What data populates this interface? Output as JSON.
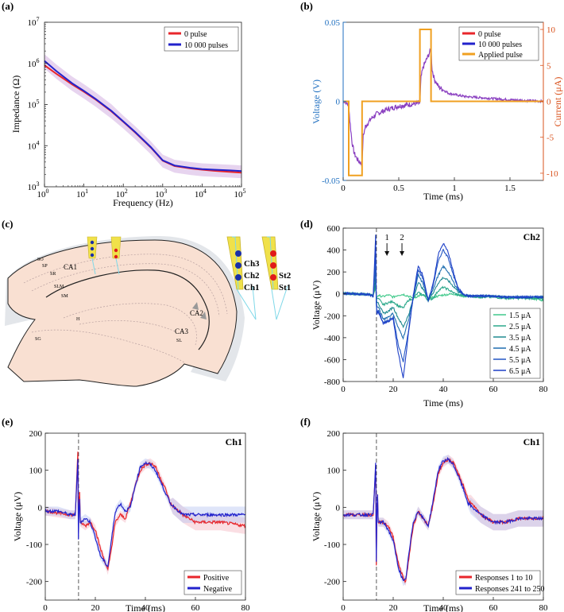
{
  "chart_data": [
    {
      "id": "a",
      "panel_label": "(a)",
      "type": "line",
      "xscale": "log",
      "yscale": "log",
      "xlabel": "Frequency (Hz)",
      "ylabel": "Impedance (Ω)",
      "xlim": [
        1,
        100000
      ],
      "ylim": [
        1000,
        10000000
      ],
      "xticks": [
        1,
        10,
        100,
        1000,
        10000,
        100000
      ],
      "xtick_labels": [
        [
          "10",
          "0"
        ],
        [
          "10",
          "1"
        ],
        [
          "10",
          "2"
        ],
        [
          "10",
          "3"
        ],
        [
          "10",
          "4"
        ],
        [
          "10",
          "5"
        ]
      ],
      "yticks": [
        1000,
        10000,
        100000,
        1000000,
        10000000
      ],
      "ytick_labels": [
        [
          "10",
          "3"
        ],
        [
          "10",
          "4"
        ],
        [
          "10",
          "5"
        ],
        [
          "10",
          "6"
        ],
        [
          "10",
          "7"
        ]
      ],
      "legend_position": "top-right",
      "series": [
        {
          "name": "0 pulse",
          "color": "#e8262b",
          "x": [
            1,
            2,
            5,
            10,
            20,
            50,
            100,
            200,
            500,
            1000,
            2000,
            5000,
            10000,
            20000,
            50000,
            100000
          ],
          "y": [
            900000,
            560000,
            310000,
            205000,
            132000,
            68000,
            38000,
            21000,
            9000,
            4300,
            3200,
            2800,
            2600,
            2450,
            2300,
            2200
          ]
        },
        {
          "name": "10 000 pulses",
          "color": "#2222cc",
          "x": [
            1,
            2,
            5,
            10,
            20,
            50,
            100,
            200,
            500,
            1000,
            2000,
            5000,
            10000,
            20000,
            50000,
            100000
          ],
          "y": [
            1150000,
            650000,
            330000,
            215000,
            136000,
            70000,
            39000,
            21500,
            9200,
            4400,
            3300,
            2900,
            2700,
            2600,
            2500,
            2400
          ]
        }
      ],
      "band": {
        "color": "#c9a0dc",
        "lower_factor": 0.65,
        "upper_factor": 1.45
      }
    },
    {
      "id": "b",
      "panel_label": "(b)",
      "type": "line",
      "xlabel": "Time (ms)",
      "ylabel_left": "Voltage (V)",
      "ylabel_right": "Current (μA)",
      "xlim": [
        0,
        1.8
      ],
      "ylim_left": [
        -0.05,
        0.05
      ],
      "ylim_right": [
        -11,
        11
      ],
      "xticks": [
        0,
        0.5,
        1,
        1.5
      ],
      "xtick_labels": [
        "0",
        "0.5",
        "1",
        "1.5"
      ],
      "yticks_left": [
        -0.05,
        0,
        0.05
      ],
      "ytick_labels_left": [
        "-0.05",
        "0",
        "0.05"
      ],
      "yticks_right": [
        -10,
        -5,
        0,
        5,
        10
      ],
      "ytick_labels_right": [
        "-10",
        "-5",
        "0",
        "5",
        "10"
      ],
      "left_axis_color": "#1f6fc0",
      "right_axis_color": "#d9531e",
      "legend_position": "top-right",
      "series": [
        {
          "name": "0 pulse",
          "color": "#e8262b",
          "axis": "left"
        },
        {
          "name": "10 000 pulses",
          "color": "#2222cc",
          "axis": "left"
        },
        {
          "name": "Applied pulse",
          "color": "#f0a020",
          "axis": "right",
          "x": [
            0,
            0.05,
            0.05,
            0.17,
            0.17,
            0.69,
            0.69,
            0.79,
            0.79,
            1.8
          ],
          "y": [
            0,
            0,
            -10.3,
            -10.3,
            0,
            0,
            10,
            10,
            0,
            0
          ]
        }
      ],
      "voltage_trace": {
        "color": "#8a3fc0",
        "x": [
          0,
          0.05,
          0.06,
          0.08,
          0.1,
          0.13,
          0.17,
          0.18,
          0.2,
          0.25,
          0.3,
          0.4,
          0.5,
          0.6,
          0.69,
          0.7,
          0.72,
          0.76,
          0.79,
          0.8,
          0.82,
          0.86,
          0.95,
          1.1,
          1.3,
          1.5,
          1.8
        ],
        "y": [
          0,
          -0.002,
          -0.012,
          -0.026,
          -0.033,
          -0.037,
          -0.04,
          -0.022,
          -0.016,
          -0.011,
          -0.008,
          -0.005,
          -0.003,
          -0.002,
          -0.001,
          0.015,
          0.022,
          0.028,
          0.033,
          0.02,
          0.014,
          0.009,
          0.005,
          0.003,
          0.002,
          0.001,
          0
        ]
      }
    },
    {
      "id": "d",
      "panel_label": "(d)",
      "type": "line",
      "title": "Ch2",
      "xlabel": "Time (ms)",
      "ylabel": "Voltage (μV)",
      "xlim": [
        0,
        80
      ],
      "ylim": [
        -800,
        600
      ],
      "xticks": [
        0,
        20,
        40,
        60,
        80
      ],
      "xtick_labels": [
        "0",
        "20",
        "40",
        "60",
        "80"
      ],
      "yticks": [
        -800,
        -600,
        -400,
        -200,
        0,
        200,
        400,
        600
      ],
      "ytick_labels": [
        "-800",
        "-600",
        "-400",
        "-200",
        "0",
        "200",
        "400",
        "600"
      ],
      "stimulus_time": 13.3,
      "annotations": [
        {
          "label": "1",
          "x": 17.5
        },
        {
          "label": "2",
          "x": 23.5
        }
      ],
      "legend_position": "bottom-right",
      "x": [
        0,
        5,
        10,
        12,
        13,
        13.3,
        14,
        16,
        18,
        20,
        22,
        24,
        26,
        28,
        30,
        32,
        34,
        36,
        38,
        40,
        42,
        44,
        46,
        48,
        50,
        55,
        60,
        65,
        70,
        75,
        80
      ],
      "series": [
        {
          "name": "1.5 μA",
          "color": "#3fc98a",
          "values": [
            5,
            0,
            -5,
            -10,
            60,
            -40,
            -15,
            -25,
            -10,
            -30,
            -10,
            -5,
            -20,
            -40,
            -20,
            -10,
            -40,
            -30,
            -20,
            -10,
            -5,
            0,
            -10,
            -20,
            -20,
            -30,
            -20,
            -40,
            -30,
            -40,
            -60
          ]
        },
        {
          "name": "2.5 μA",
          "color": "#2aa88a",
          "values": [
            5,
            0,
            -5,
            -15,
            80,
            -50,
            -40,
            -100,
            -80,
            -70,
            -110,
            -130,
            -60,
            -40,
            10,
            -10,
            -60,
            -40,
            30,
            60,
            40,
            10,
            -10,
            -20,
            -20,
            -30,
            -30,
            -40,
            -40,
            -40,
            -50
          ]
        },
        {
          "name": "3.5 μA",
          "color": "#1f8a90",
          "values": [
            5,
            0,
            -5,
            -20,
            150,
            -80,
            -80,
            -180,
            -160,
            -120,
            -220,
            -300,
            -200,
            -50,
            110,
            40,
            -50,
            10,
            100,
            150,
            120,
            70,
            20,
            -10,
            -20,
            -20,
            -20,
            -30,
            -30,
            -30,
            -30
          ]
        },
        {
          "name": "4.5 μA",
          "color": "#1f6eb0",
          "values": [
            5,
            0,
            -5,
            -20,
            250,
            -120,
            -120,
            -230,
            -210,
            -180,
            -310,
            -400,
            -250,
            -40,
            170,
            90,
            -60,
            50,
            170,
            250,
            200,
            110,
            30,
            0,
            -20,
            -20,
            -20,
            -30,
            -30,
            -30,
            -30
          ]
        },
        {
          "name": "5.5 μA",
          "color": "#2356c4",
          "values": [
            5,
            0,
            -5,
            -20,
            400,
            -180,
            -150,
            -260,
            -240,
            -210,
            -460,
            -620,
            -350,
            -30,
            220,
            130,
            -60,
            80,
            300,
            400,
            330,
            170,
            40,
            0,
            -20,
            -20,
            -20,
            -30,
            -30,
            -30,
            -30
          ]
        },
        {
          "name": "6.5 μA",
          "color": "#1d3fc7",
          "values": [
            5,
            0,
            -5,
            -20,
            540,
            -200,
            -160,
            -270,
            -250,
            -230,
            -540,
            -770,
            -380,
            -20,
            260,
            160,
            -70,
            100,
            360,
            460,
            380,
            200,
            50,
            0,
            -20,
            -20,
            -20,
            -30,
            -30,
            -30,
            -30
          ]
        }
      ]
    },
    {
      "id": "e",
      "panel_label": "(e)",
      "type": "line",
      "title": "Ch1",
      "xlabel": "Time (ms)",
      "ylabel": "Voltage (μV)",
      "xlim": [
        0,
        80
      ],
      "ylim": [
        -250,
        200
      ],
      "xticks": [
        0,
        20,
        40,
        60,
        80
      ],
      "xtick_labels": [
        "0",
        "20",
        "40",
        "60",
        "80"
      ],
      "yticks": [
        -200,
        -100,
        0,
        100,
        200
      ],
      "ytick_labels": [
        "-200",
        "-100",
        "0",
        "100",
        "200"
      ],
      "stimulus_time": 13.3,
      "legend_position": "bottom-right",
      "x": [
        0,
        5,
        10,
        12,
        13,
        13.3,
        13.6,
        14,
        16,
        18,
        20,
        22,
        24,
        25,
        26,
        28,
        30,
        32,
        34,
        36,
        38,
        40,
        42,
        44,
        46,
        48,
        50,
        55,
        60,
        65,
        70,
        75,
        80
      ],
      "series": [
        {
          "name": "Positive",
          "color": "#e8262b",
          "values": [
            -10,
            -15,
            -20,
            -20,
            150,
            -110,
            90,
            -40,
            -50,
            -40,
            -60,
            -110,
            -150,
            -170,
            -130,
            -40,
            -20,
            -30,
            10,
            60,
            100,
            115,
            120,
            110,
            80,
            50,
            10,
            -20,
            -40,
            -40,
            -40,
            -45,
            -50
          ]
        },
        {
          "name": "Negative",
          "color": "#2222cc",
          "values": [
            -10,
            -10,
            -20,
            -20,
            130,
            -130,
            60,
            -40,
            -30,
            -40,
            -80,
            -130,
            -150,
            -160,
            -110,
            -10,
            10,
            -10,
            0,
            60,
            110,
            120,
            115,
            100,
            70,
            40,
            10,
            -20,
            -20,
            -20,
            -20,
            -20,
            -20
          ]
        }
      ],
      "band_colors": [
        "#f4b6c0",
        "#b9c6f2"
      ]
    },
    {
      "id": "f",
      "panel_label": "(f)",
      "type": "line",
      "title": "Ch1",
      "xlabel": "Time (ms)",
      "ylabel": "Voltage (μV)",
      "xlim": [
        0,
        80
      ],
      "ylim": [
        -250,
        200
      ],
      "xticks": [
        0,
        20,
        40,
        60,
        80
      ],
      "xtick_labels": [
        "0",
        "20",
        "40",
        "60",
        "80"
      ],
      "yticks": [
        -200,
        -100,
        0,
        100,
        200
      ],
      "ytick_labels": [
        "-200",
        "-100",
        "0",
        "100",
        "200"
      ],
      "stimulus_time": 13.3,
      "legend_position": "bottom-right",
      "x": [
        0,
        5,
        10,
        12,
        13,
        13.3,
        13.6,
        14,
        16,
        18,
        20,
        22,
        24,
        25,
        26,
        28,
        30,
        32,
        34,
        36,
        38,
        40,
        42,
        44,
        46,
        48,
        50,
        55,
        60,
        65,
        70,
        75,
        80
      ],
      "series": [
        {
          "name": "Responses 1 to 10",
          "color": "#e8262b",
          "values": [
            -20,
            -20,
            -20,
            -20,
            110,
            -210,
            80,
            -40,
            -40,
            -50,
            -80,
            -150,
            -190,
            -200,
            -150,
            -50,
            -10,
            -30,
            -50,
            10,
            90,
            120,
            130,
            120,
            90,
            60,
            20,
            -20,
            -40,
            -40,
            -30,
            -30,
            -30
          ]
        },
        {
          "name": "Responses 241 to 250",
          "color": "#2222cc",
          "values": [
            -20,
            -20,
            -20,
            -20,
            120,
            -200,
            80,
            -40,
            -40,
            -60,
            -90,
            -160,
            -200,
            -195,
            -140,
            -40,
            -10,
            -30,
            -50,
            20,
            100,
            125,
            130,
            115,
            85,
            50,
            10,
            -20,
            -40,
            -40,
            -30,
            -30,
            -30
          ]
        }
      ],
      "band_colors": [
        "#f4b6c0",
        "#b9c6f2"
      ]
    }
  ],
  "panel_c": {
    "panel_label": "(c)",
    "region_labels": [
      "SO",
      "SP",
      "SR",
      "CA1",
      "SLM",
      "SM",
      "H",
      "SG",
      "CA2",
      "CA3",
      "SL"
    ],
    "probe_left": {
      "channels": [
        "Ch3",
        "Ch2",
        "Ch1"
      ],
      "dot_color": "#1a2fa8"
    },
    "probe_right": {
      "channels": [
        "St2",
        "St1"
      ],
      "dot_color": "#e01a1a"
    },
    "colors": {
      "tissue": "#f9e0d2",
      "outline": "#222222",
      "shank": "#f0e14a",
      "guide": "#7fd8e8",
      "shadow": "#e3e6ea"
    }
  }
}
